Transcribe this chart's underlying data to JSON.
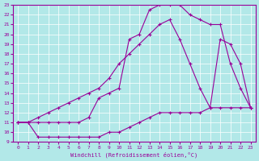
{
  "xlabel": "Windchill (Refroidissement éolien,°C)",
  "bg_color": "#b2e8e8",
  "grid_color": "#ffffff",
  "line_color": "#990099",
  "xlim": [
    -0.5,
    23.5
  ],
  "ylim": [
    9,
    23
  ],
  "xticks": [
    0,
    1,
    2,
    3,
    4,
    5,
    6,
    7,
    8,
    9,
    10,
    11,
    12,
    13,
    14,
    15,
    16,
    17,
    18,
    19,
    20,
    21,
    22,
    23
  ],
  "yticks": [
    9,
    10,
    11,
    12,
    13,
    14,
    15,
    16,
    17,
    18,
    19,
    20,
    21,
    22,
    23
  ],
  "line1_x": [
    0,
    1,
    2,
    3,
    4,
    5,
    6,
    7,
    8,
    9,
    10,
    11,
    12,
    13,
    14,
    15,
    16,
    17,
    18,
    19,
    20,
    21,
    22,
    23
  ],
  "line1_y": [
    11,
    11,
    9.5,
    9.5,
    9.5,
    9.5,
    9.5,
    9.5,
    9.5,
    10,
    10,
    10.5,
    11,
    11.5,
    12,
    12,
    12,
    12,
    12,
    12.5,
    12.5,
    12.5,
    12.5,
    12.5
  ],
  "line2_x": [
    0,
    1,
    2,
    3,
    4,
    5,
    6,
    7,
    8,
    9,
    10,
    11,
    12,
    13,
    14,
    15,
    16,
    17,
    18,
    19,
    20,
    21,
    22,
    23
  ],
  "line2_y": [
    11,
    11,
    11.5,
    12,
    12.5,
    13,
    13.5,
    14,
    14.5,
    15.5,
    17,
    18,
    19,
    20,
    21,
    21.5,
    19.5,
    17,
    14.5,
    12.5,
    19.5,
    19.0,
    17.0,
    12.5
  ],
  "line3_x": [
    0,
    1,
    2,
    3,
    4,
    5,
    6,
    7,
    8,
    9,
    10,
    11,
    12,
    13,
    14,
    15,
    16,
    17,
    18,
    19,
    20,
    21,
    22,
    23
  ],
  "line3_y": [
    11,
    11,
    11,
    11,
    11,
    11,
    11,
    11.5,
    13.5,
    14,
    14.5,
    19.5,
    20,
    22.5,
    23,
    23,
    23,
    22,
    21.5,
    21,
    21,
    17,
    14.5,
    12.5
  ]
}
